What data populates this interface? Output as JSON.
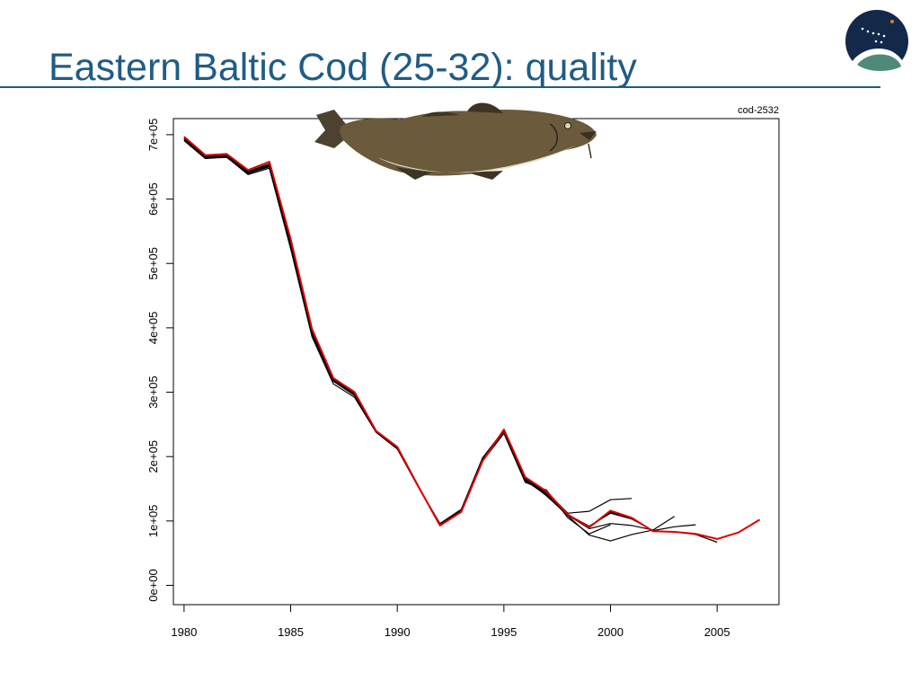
{
  "slide": {
    "title": "Eastern Baltic Cod (25-32): quality"
  },
  "logo": {
    "icon": "constellation-logo-icon"
  },
  "fish": {
    "icon": "cod-fish-icon"
  },
  "colors": {
    "title": "#1f5c85",
    "final_assessment": "#dd0000",
    "retrospective": "#000000"
  },
  "chart_data": {
    "type": "line",
    "title": "",
    "plot_label": "cod-2532",
    "xlabel": "",
    "ylabel": "",
    "xlim": [
      1979.5,
      2007.9
    ],
    "ylim": [
      -30000,
      725000
    ],
    "x_ticks": [
      1980,
      1985,
      1990,
      1995,
      2000,
      2005
    ],
    "x_tick_labels": [
      "1980",
      "1985",
      "1990",
      "1995",
      "2000",
      "2005"
    ],
    "y_ticks": [
      0,
      100000,
      200000,
      300000,
      400000,
      500000,
      600000,
      700000
    ],
    "y_tick_labels": [
      "0e+00",
      "1e+05",
      "2e+05",
      "3e+05",
      "4e+05",
      "5e+05",
      "6e+05",
      "7e+05"
    ],
    "grid": false,
    "legend": "none",
    "series": [
      {
        "role": "retrospective",
        "color": "#000000",
        "x": [
          1980,
          1981,
          1982,
          1983,
          1984,
          1985,
          1986,
          1987,
          1988,
          1989,
          1990,
          1991,
          1992,
          1993,
          1994,
          1995,
          1996,
          1997,
          1998,
          1999,
          2000
        ],
        "y": [
          691000,
          663000,
          665000,
          638000,
          648000,
          523000,
          386000,
          313000,
          292000,
          238000,
          212000,
          152000,
          94000,
          115000,
          193000,
          236000,
          160000,
          148000,
          105000,
          80000,
          94000
        ]
      },
      {
        "role": "retrospective",
        "color": "#000000",
        "x": [
          1980,
          1981,
          1982,
          1983,
          1984,
          1985,
          1986,
          1987,
          1988,
          1989,
          1990,
          1991,
          1992,
          1993,
          1994,
          1995,
          1996,
          1997,
          1998,
          1999,
          2000,
          2001
        ],
        "y": [
          691000,
          663000,
          666000,
          640000,
          650000,
          528000,
          390000,
          317000,
          295000,
          238000,
          212000,
          152000,
          95000,
          116000,
          195000,
          238000,
          162000,
          145000,
          112000,
          115000,
          133000,
          135000
        ]
      },
      {
        "role": "retrospective",
        "color": "#000000",
        "x": [
          1980,
          1981,
          1982,
          1983,
          1984,
          1985,
          1986,
          1987,
          1988,
          1989,
          1990,
          1991,
          1992,
          1993,
          1994,
          1995,
          1996,
          1997,
          1998,
          1999,
          2000,
          2001,
          2002
        ],
        "y": [
          693000,
          664000,
          665000,
          640000,
          651000,
          530000,
          392000,
          318000,
          295000,
          239000,
          213000,
          152000,
          96000,
          118000,
          198000,
          241000,
          163000,
          140000,
          108000,
          78000,
          69000,
          79000,
          86000
        ]
      },
      {
        "role": "retrospective",
        "color": "#000000",
        "x": [
          1980,
          1981,
          1982,
          1983,
          1984,
          1985,
          1986,
          1987,
          1988,
          1989,
          1990,
          1991,
          1992,
          1993,
          1994,
          1995,
          1996,
          1997,
          1998,
          1999,
          2000,
          2001,
          2002,
          2003
        ],
        "y": [
          694000,
          665000,
          666000,
          641000,
          652000,
          532000,
          393000,
          319000,
          296000,
          239000,
          213000,
          153000,
          95000,
          116000,
          196000,
          240000,
          165000,
          139000,
          109000,
          88000,
          96000,
          93000,
          86000,
          107000
        ]
      },
      {
        "role": "retrospective",
        "color": "#000000",
        "x": [
          1980,
          1981,
          1982,
          1983,
          1984,
          1985,
          1986,
          1987,
          1988,
          1989,
          1990,
          1991,
          1992,
          1993,
          1994,
          1995,
          1996,
          1997,
          1998,
          1999,
          2000,
          2001,
          2002,
          2003,
          2004
        ],
        "y": [
          694000,
          666000,
          667000,
          642000,
          653000,
          534000,
          394000,
          320000,
          297000,
          239000,
          213000,
          153000,
          95000,
          116000,
          196000,
          240000,
          165000,
          142000,
          110000,
          92000,
          112000,
          103000,
          85000,
          91000,
          94000
        ]
      },
      {
        "role": "retrospective",
        "color": "#000000",
        "x": [
          1980,
          1981,
          1982,
          1983,
          1984,
          1985,
          1986,
          1987,
          1988,
          1989,
          1990,
          1991,
          1992,
          1993,
          1994,
          1995,
          1996,
          1997,
          1998,
          1999,
          2000,
          2001,
          2002,
          2003,
          2004,
          2005
        ],
        "y": [
          694000,
          666000,
          668000,
          643000,
          655000,
          535000,
          396000,
          321000,
          298000,
          240000,
          214000,
          153000,
          94000,
          115000,
          196000,
          240000,
          166000,
          143000,
          110000,
          90000,
          114000,
          104000,
          84000,
          83000,
          79000,
          67000
        ]
      },
      {
        "role": "final",
        "color": "#dd0000",
        "x": [
          1980,
          1981,
          1982,
          1983,
          1984,
          1985,
          1986,
          1987,
          1988,
          1989,
          1990,
          1991,
          1992,
          1993,
          1994,
          1995,
          1996,
          1997,
          1998,
          1999,
          2000,
          2001,
          2002,
          2003,
          2004,
          2005,
          2006,
          2007
        ],
        "y": [
          697000,
          668000,
          670000,
          645000,
          658000,
          538000,
          398000,
          322000,
          300000,
          240000,
          215000,
          153000,
          93000,
          114000,
          193000,
          242000,
          168000,
          146000,
          110000,
          90000,
          116000,
          105000,
          84000,
          83000,
          80000,
          72000,
          82000,
          102000
        ]
      }
    ]
  }
}
